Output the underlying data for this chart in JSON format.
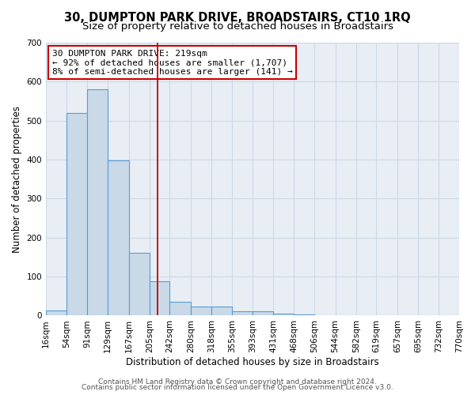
{
  "title": "30, DUMPTON PARK DRIVE, BROADSTAIRS, CT10 1RQ",
  "subtitle": "Size of property relative to detached houses in Broadstairs",
  "xlabel": "Distribution of detached houses by size in Broadstairs",
  "ylabel": "Number of detached properties",
  "bin_edges": [
    16,
    54,
    91,
    129,
    167,
    205,
    242,
    280,
    318,
    355,
    393,
    431,
    468,
    506,
    544,
    582,
    619,
    657,
    695,
    732,
    770
  ],
  "bin_heights": [
    13,
    519,
    580,
    399,
    162,
    88,
    35,
    24,
    24,
    12,
    12,
    5,
    3,
    0,
    0,
    0,
    0,
    0,
    0,
    0
  ],
  "bar_facecolor": "#c9d9e8",
  "bar_edgecolor": "#5b9bd5",
  "vline_x": 219,
  "vline_color": "#cc0000",
  "annotation_line1": "30 DUMPTON PARK DRIVE: 219sqm",
  "annotation_line2": "← 92% of detached houses are smaller (1,707)",
  "annotation_line3": "8% of semi-detached houses are larger (141) →",
  "annotation_box_edgecolor": "#cc0000",
  "annotation_box_facecolor": "#ffffff",
  "ylim": [
    0,
    700
  ],
  "yticks": [
    0,
    100,
    200,
    300,
    400,
    500,
    600,
    700
  ],
  "xtick_labels": [
    "16sqm",
    "54sqm",
    "91sqm",
    "129sqm",
    "167sqm",
    "205sqm",
    "242sqm",
    "280sqm",
    "318sqm",
    "355sqm",
    "393sqm",
    "431sqm",
    "468sqm",
    "506sqm",
    "544sqm",
    "582sqm",
    "619sqm",
    "657sqm",
    "695sqm",
    "732sqm",
    "770sqm"
  ],
  "grid_color": "#cdd9e5",
  "footer_line1": "Contains HM Land Registry data © Crown copyright and database right 2024.",
  "footer_line2": "Contains public sector information licensed under the Open Government Licence v3.0.",
  "title_fontsize": 10.5,
  "subtitle_fontsize": 9.5,
  "axis_label_fontsize": 8.5,
  "tick_fontsize": 7.5,
  "annotation_fontsize": 8,
  "footer_fontsize": 6.5,
  "bg_color": "#e8eef4"
}
